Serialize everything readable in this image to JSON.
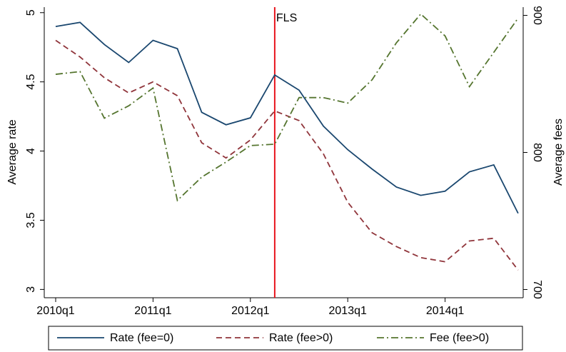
{
  "chart_data": {
    "type": "line",
    "categories": [
      "2010q1",
      null,
      null,
      null,
      "2011q1",
      null,
      null,
      null,
      "2012q1",
      null,
      null,
      null,
      "2013q1",
      null,
      null,
      null,
      "2014q1",
      null,
      null,
      null
    ],
    "y_label": "Average rate",
    "y2_label": "Average fees",
    "ylim": [
      2.94,
      5.04
    ],
    "yticks": [
      3,
      3.5,
      4,
      4.5,
      5
    ],
    "y2lim": [
      694,
      906
    ],
    "y2ticks": [
      700,
      800,
      900
    ],
    "vline": {
      "label": "FLS",
      "at": 9,
      "color": "#e8141c"
    },
    "legend": "bottom",
    "series": [
      {
        "name": "Rate (fee=0)",
        "color": "#1a476f",
        "dash": "none",
        "values": [
          4.9,
          4.93,
          4.77,
          4.64,
          4.8,
          4.74,
          4.28,
          4.19,
          4.24,
          4.55,
          4.44,
          4.18,
          4.01,
          3.87,
          3.74,
          3.68,
          3.71,
          3.85,
          3.9,
          3.55
        ]
      },
      {
        "name": "Rate (fee>0)",
        "color": "#90353b",
        "dash": "8 5",
        "values": [
          4.8,
          4.68,
          4.53,
          4.42,
          4.5,
          4.4,
          4.06,
          3.95,
          4.08,
          4.29,
          4.22,
          3.98,
          3.63,
          3.41,
          3.31,
          3.23,
          3.2,
          3.35,
          3.37,
          3.14
        ]
      },
      {
        "name": "Fee (fee>0)",
        "color": "#55752f",
        "dash": "10 4 2 4",
        "axis": "y2",
        "values": [
          857,
          859,
          825,
          834,
          847,
          765,
          782,
          793,
          805,
          806,
          840,
          840,
          836,
          853,
          880,
          901,
          885,
          848,
          873,
          898
        ]
      }
    ]
  }
}
